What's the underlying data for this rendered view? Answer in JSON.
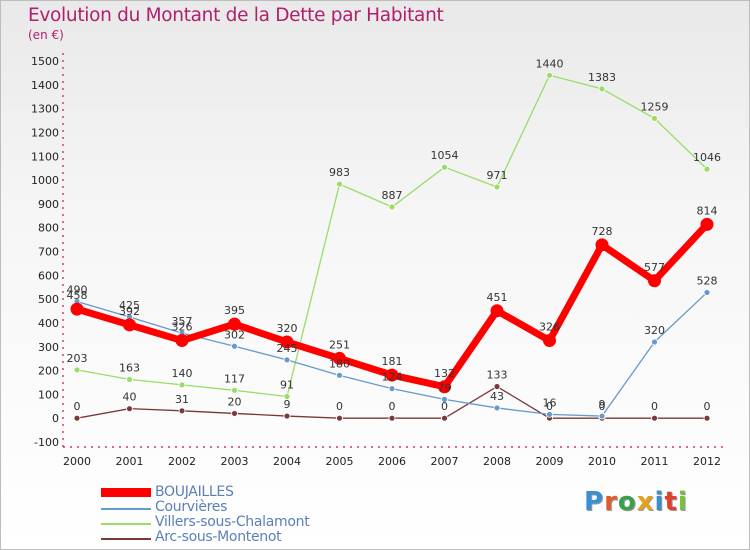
{
  "title": "Evolution du Montant de la Dette par Habitant",
  "unit_label": "(en €)",
  "logo_text": "Proxiti",
  "chart_data": {
    "type": "line",
    "title": "Evolution du Montant de la Dette par Habitant",
    "ylabel": "(en €)",
    "xlabel": "",
    "x": [
      "2000",
      "2001",
      "2002",
      "2003",
      "2004",
      "2005",
      "2006",
      "2007",
      "2008",
      "2009",
      "2010",
      "2011",
      "2012"
    ],
    "ylim": [
      -100,
      1500
    ],
    "yticks": [
      -100,
      0,
      100,
      200,
      300,
      400,
      500,
      600,
      700,
      800,
      900,
      1000,
      1100,
      1200,
      1300,
      1400,
      1500
    ],
    "grid": false,
    "legend": "bottom-left",
    "series": [
      {
        "name": "BOUJAILLES",
        "color": "#ff0000",
        "values": [
          458,
          392,
          326,
          395,
          320,
          251,
          181,
          132,
          451,
          326,
          728,
          577,
          814
        ],
        "labels": [
          "458",
          "392",
          "326",
          "395",
          "320",
          "251",
          "181",
          "132",
          "451",
          "326",
          "728",
          "577",
          "814"
        ]
      },
      {
        "name": "Courvières",
        "color": "#6699cc",
        "values": [
          490,
          425,
          357,
          302,
          245,
          180,
          124,
          79,
          43,
          16,
          9,
          320,
          528
        ],
        "labels": [
          "490",
          "425",
          "357",
          "302",
          "245",
          "180",
          "124",
          "79",
          "43",
          "16",
          "9",
          "320",
          "528"
        ]
      },
      {
        "name": "Villers-sous-Chalamont",
        "color": "#99dd66",
        "values": [
          203,
          163,
          140,
          117,
          91,
          983,
          887,
          1054,
          971,
          1440,
          1383,
          1259,
          1046
        ],
        "labels": [
          "203",
          "163",
          "140",
          "117",
          "91",
          "983",
          "887",
          "1054",
          "971",
          "1440",
          "1383",
          "1259",
          "1046"
        ]
      },
      {
        "name": "Arc-sous-Montenot",
        "color": "#7a3838",
        "values": [
          0,
          40,
          31,
          20,
          9,
          0,
          0,
          0,
          133,
          0,
          0,
          0,
          0
        ],
        "labels": [
          "0",
          "40",
          "31",
          "20",
          "9",
          "0",
          "0",
          "0",
          "133",
          "0",
          "0",
          "0",
          "0"
        ]
      }
    ]
  },
  "colors": {
    "BOUJAILLES": "#ff0000",
    "Courvières": "#6699cc",
    "Villers-sous-Chalamont": "#99dd66",
    "Arc-sous-Montenot": "#7a3838",
    "title": "#b0206e",
    "axis": "#cc3366"
  }
}
